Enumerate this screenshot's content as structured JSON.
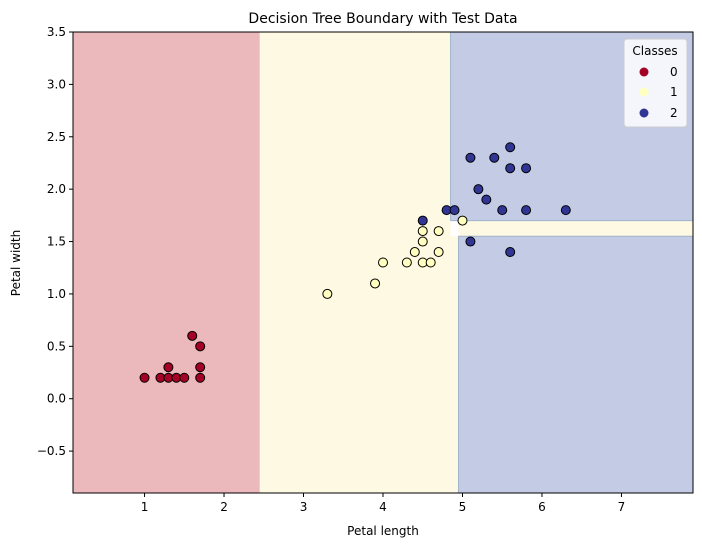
{
  "chart_data": {
    "type": "scatter",
    "title": "Decision Tree Boundary with Test Data",
    "xlabel": "Petal length",
    "ylabel": "Petal width",
    "xlim": [
      0.1,
      7.9
    ],
    "ylim": [
      -0.9,
      3.5
    ],
    "x_ticks": [
      1,
      2,
      3,
      4,
      5,
      6,
      7
    ],
    "y_ticks": [
      -0.5,
      0.0,
      0.5,
      1.0,
      1.5,
      2.0,
      2.5,
      3.0,
      3.5
    ],
    "grid": false,
    "legend": {
      "title": "Classes",
      "placement": "top-right",
      "entries": [
        "0",
        "1",
        "2"
      ]
    },
    "class_colors": [
      "#a50026",
      "#ffffbf",
      "#313695"
    ],
    "region_colors": [
      "#ebb9bc",
      "#fdf9e2",
      "#c4cce5"
    ],
    "boundary_color": "#9fb3cc",
    "decision_regions": [
      {
        "class": 0,
        "x": [
          0.1,
          2.45
        ],
        "y": [
          -0.9,
          3.5
        ]
      },
      {
        "class": 1,
        "x": [
          2.45,
          4.85
        ],
        "y": [
          -0.9,
          3.5
        ]
      },
      {
        "class": 1,
        "x": [
          4.85,
          4.95
        ],
        "y": [
          -0.9,
          1.55
        ]
      },
      {
        "class": 2,
        "x": [
          4.85,
          7.9
        ],
        "y": [
          1.7,
          3.5
        ]
      },
      {
        "class": 1,
        "x": [
          4.95,
          7.9
        ],
        "y": [
          1.55,
          1.7
        ]
      },
      {
        "class": 2,
        "x": [
          4.95,
          7.9
        ],
        "y": [
          -0.9,
          1.55
        ]
      }
    ],
    "series": [
      {
        "name": "0",
        "class": 0,
        "points": [
          [
            1.0,
            0.2
          ],
          [
            1.2,
            0.2
          ],
          [
            1.3,
            0.2
          ],
          [
            1.3,
            0.3
          ],
          [
            1.4,
            0.2
          ],
          [
            1.5,
            0.2
          ],
          [
            1.6,
            0.6
          ],
          [
            1.7,
            0.5
          ],
          [
            1.7,
            0.3
          ],
          [
            1.7,
            0.2
          ]
        ]
      },
      {
        "name": "1",
        "class": 1,
        "points": [
          [
            3.3,
            1.0
          ],
          [
            3.9,
            1.1
          ],
          [
            4.0,
            1.3
          ],
          [
            4.3,
            1.3
          ],
          [
            4.4,
            1.4
          ],
          [
            4.5,
            1.3
          ],
          [
            4.5,
            1.5
          ],
          [
            4.5,
            1.6
          ],
          [
            4.6,
            1.3
          ],
          [
            4.7,
            1.4
          ],
          [
            4.7,
            1.6
          ],
          [
            5.0,
            1.7
          ]
        ]
      },
      {
        "name": "2",
        "class": 2,
        "points": [
          [
            4.5,
            1.7
          ],
          [
            4.8,
            1.8
          ],
          [
            4.9,
            1.8
          ],
          [
            5.1,
            2.3
          ],
          [
            5.1,
            1.5
          ],
          [
            5.2,
            2.0
          ],
          [
            5.3,
            1.9
          ],
          [
            5.4,
            2.3
          ],
          [
            5.5,
            1.8
          ],
          [
            5.6,
            2.4
          ],
          [
            5.6,
            2.2
          ],
          [
            5.6,
            1.4
          ],
          [
            5.8,
            2.2
          ],
          [
            5.8,
            1.8
          ],
          [
            6.3,
            1.8
          ]
        ]
      }
    ]
  }
}
